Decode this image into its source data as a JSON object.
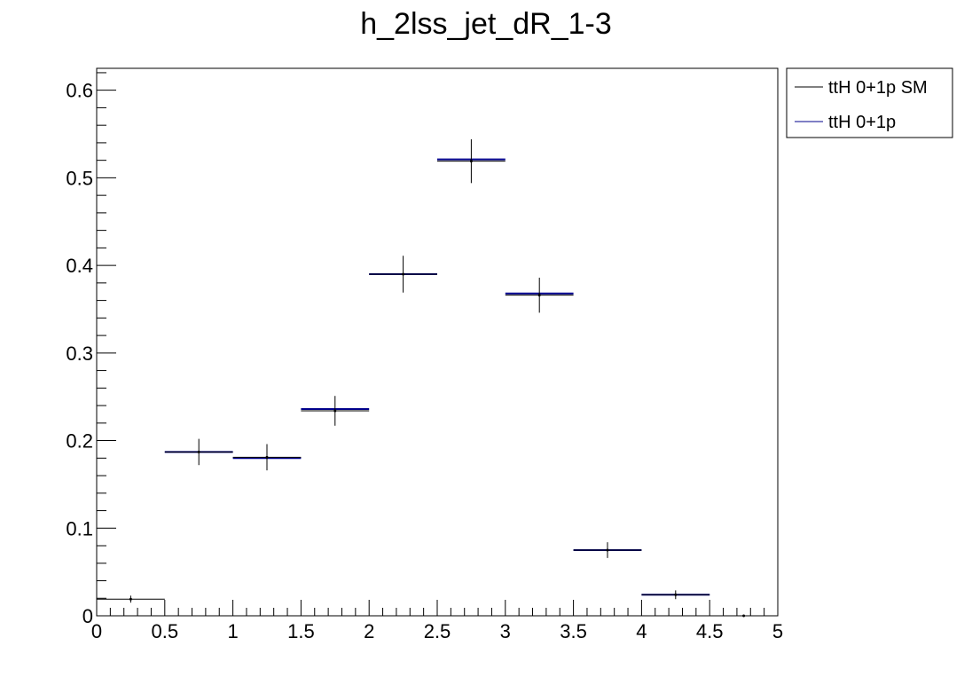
{
  "chart_data": {
    "type": "histogram",
    "title": "h_2lss_jet_dR_1-3",
    "xlabel": "",
    "ylabel": "",
    "xlim": [
      0,
      5
    ],
    "ylim": [
      0,
      0.625
    ],
    "bin_edges": [
      0,
      0.5,
      1,
      1.5,
      2,
      2.5,
      3,
      3.5,
      4,
      4.5,
      5
    ],
    "x_ticks": [
      "0",
      "0.5",
      "1",
      "1.5",
      "2",
      "2.5",
      "3",
      "3.5",
      "4",
      "4.5",
      "5"
    ],
    "y_ticks": [
      "0",
      "0.1",
      "0.2",
      "0.3",
      "0.4",
      "0.5",
      "0.6"
    ],
    "y_tick_values": [
      0,
      0.1,
      0.2,
      0.3,
      0.4,
      0.5,
      0.6
    ],
    "legend_position": "top-right, outside plot",
    "series": [
      {
        "name": "ttH 0+1p SM",
        "color": "#000000",
        "values": [
          0.019,
          0.187,
          0.181,
          0.234,
          0.39,
          0.519,
          0.366,
          0.075,
          0.024,
          0.0
        ],
        "errors": [
          0.004,
          0.015,
          0.015,
          0.017,
          0.021,
          0.025,
          0.02,
          0.009,
          0.005,
          0.0
        ]
      },
      {
        "name": "ttH 0+1p",
        "color": "#00008b",
        "values": [
          null,
          0.187,
          0.18,
          0.236,
          0.39,
          0.521,
          0.368,
          0.075,
          0.024,
          null
        ],
        "errors": [
          0,
          0,
          0,
          0,
          0,
          0,
          0,
          0,
          0,
          0
        ]
      }
    ]
  }
}
